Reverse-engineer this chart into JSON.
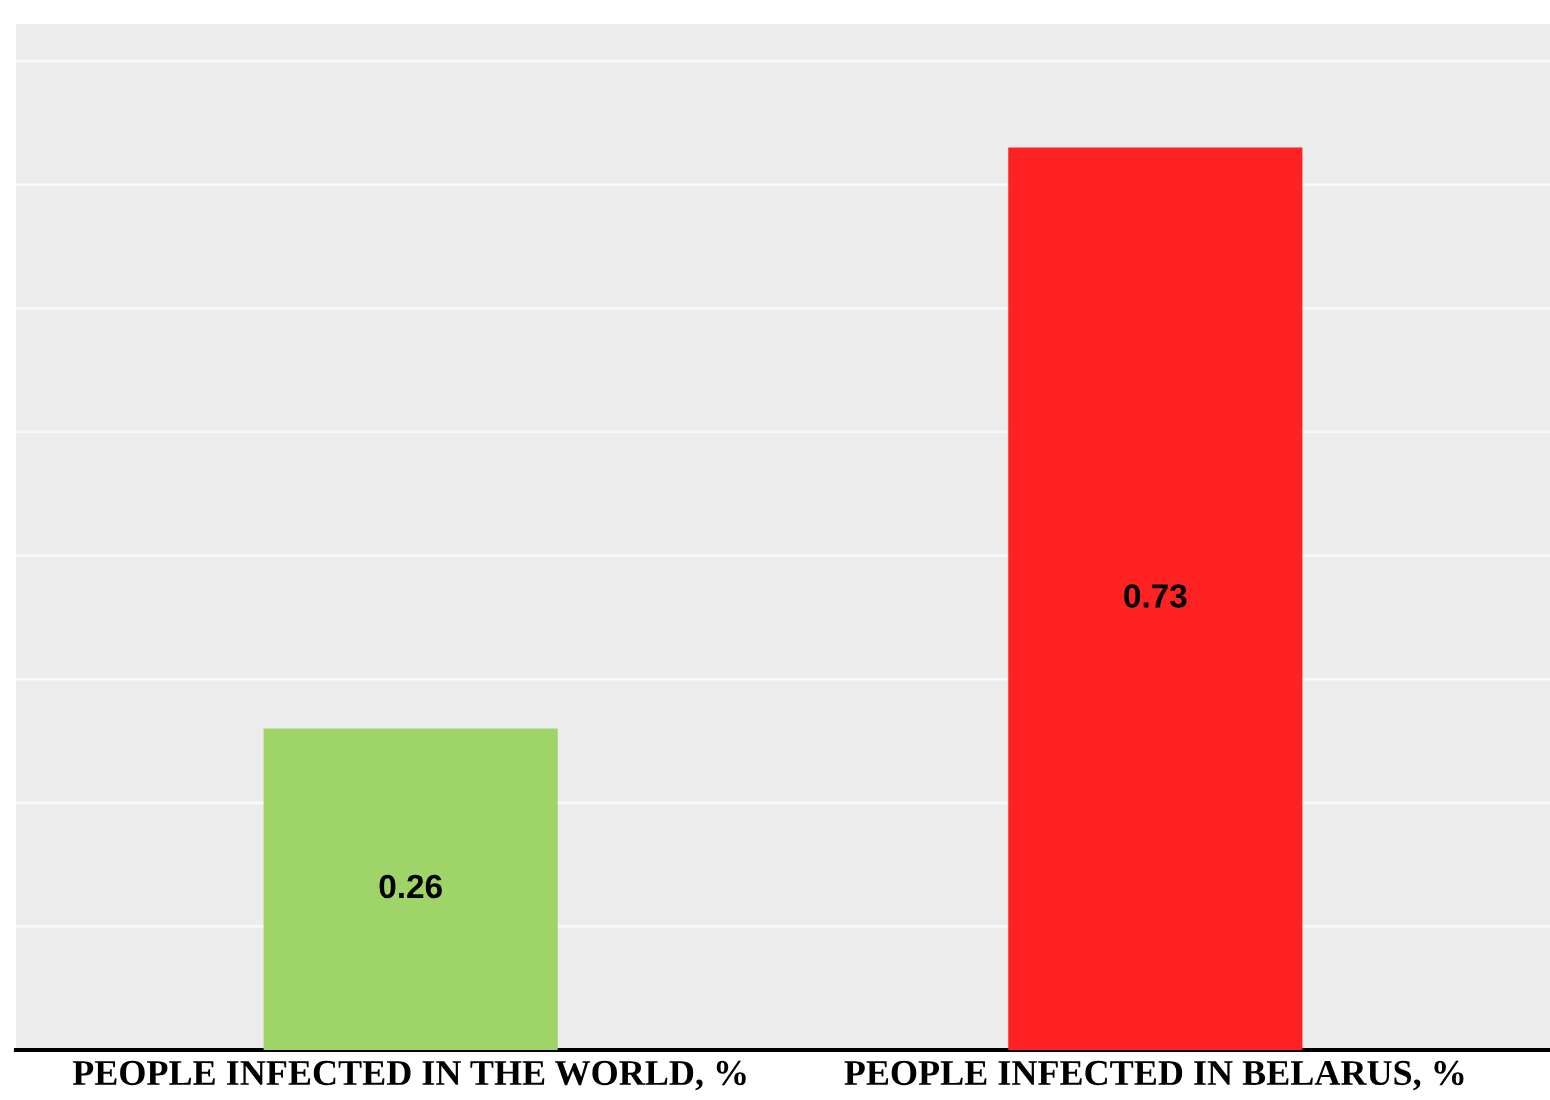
{
  "chart_data": {
    "type": "bar",
    "categories": [
      "PEOPLE INFECTED IN THE WORLD, %",
      "PEOPLE INFECTED IN BELARUS, %"
    ],
    "values": [
      0.26,
      0.73
    ],
    "colors": [
      "#9fd468",
      "#ff2222"
    ],
    "ylim": [
      0,
      0.83
    ],
    "yticks": [
      {
        "value": 0,
        "label": null
      },
      {
        "value": 0.1,
        "label": null
      },
      {
        "value": 0.2,
        "label": null
      },
      {
        "value": 0.3,
        "label": null
      },
      {
        "value": 0.4,
        "label": null
      },
      {
        "value": 0.5,
        "label": null
      },
      {
        "value": 0.6,
        "label": null
      },
      {
        "value": 0.7,
        "label": null
      },
      {
        "value": 0.8,
        "label": null
      }
    ],
    "grid": "y",
    "tick_labels": "x",
    "data_labels": true
  }
}
